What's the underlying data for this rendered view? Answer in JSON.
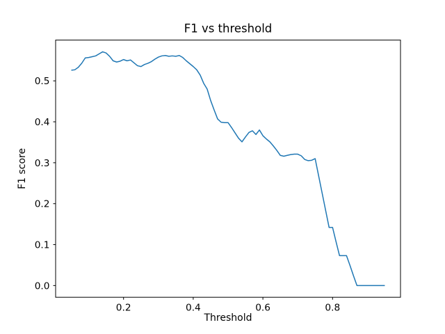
{
  "figure": {
    "background_color": "#ffffff",
    "text_color": "#000000"
  },
  "chart_data": {
    "type": "line",
    "title": "F1 vs threshold",
    "xlabel": "Threshold",
    "ylabel": "F1 score",
    "grid": false,
    "legend": null,
    "line_color": "#1f77b4",
    "xlim": [
      0.005,
      0.995
    ],
    "ylim": [
      -0.0286,
      0.5996
    ],
    "x_ticks": [
      0.2,
      0.4,
      0.6,
      0.8
    ],
    "y_ticks": [
      0.0,
      0.1,
      0.2,
      0.3,
      0.4,
      0.5
    ],
    "x": [
      0.05,
      0.06,
      0.07,
      0.08,
      0.09,
      0.1,
      0.11,
      0.12,
      0.13,
      0.14,
      0.15,
      0.16,
      0.17,
      0.18,
      0.19,
      0.2,
      0.21,
      0.22,
      0.23,
      0.24,
      0.25,
      0.26,
      0.27,
      0.28,
      0.29,
      0.3,
      0.31,
      0.32,
      0.33,
      0.34,
      0.35,
      0.36,
      0.37,
      0.38,
      0.39,
      0.4,
      0.41,
      0.42,
      0.43,
      0.44,
      0.45,
      0.46,
      0.47,
      0.48,
      0.49,
      0.5,
      0.51,
      0.52,
      0.53,
      0.54,
      0.55,
      0.56,
      0.57,
      0.58,
      0.59,
      0.6,
      0.61,
      0.62,
      0.63,
      0.64,
      0.65,
      0.66,
      0.67,
      0.68,
      0.69,
      0.7,
      0.71,
      0.72,
      0.73,
      0.74,
      0.75,
      0.76,
      0.77,
      0.78,
      0.79,
      0.8,
      0.81,
      0.82,
      0.83,
      0.84,
      0.85,
      0.86,
      0.87,
      0.88,
      0.89,
      0.9,
      0.91,
      0.92,
      0.93,
      0.94,
      0.95
    ],
    "y": [
      0.526,
      0.527,
      0.533,
      0.543,
      0.556,
      0.557,
      0.559,
      0.561,
      0.566,
      0.571,
      0.568,
      0.56,
      0.549,
      0.546,
      0.548,
      0.552,
      0.549,
      0.551,
      0.544,
      0.537,
      0.535,
      0.54,
      0.543,
      0.547,
      0.553,
      0.558,
      0.561,
      0.562,
      0.56,
      0.561,
      0.56,
      0.562,
      0.557,
      0.549,
      0.542,
      0.535,
      0.527,
      0.514,
      0.494,
      0.48,
      0.452,
      0.429,
      0.407,
      0.399,
      0.398,
      0.398,
      0.386,
      0.373,
      0.36,
      0.351,
      0.363,
      0.374,
      0.378,
      0.369,
      0.38,
      0.366,
      0.358,
      0.351,
      0.341,
      0.33,
      0.318,
      0.316,
      0.318,
      0.32,
      0.321,
      0.321,
      0.317,
      0.308,
      0.305,
      0.306,
      0.31,
      0.268,
      0.226,
      0.184,
      0.142,
      0.142,
      0.107,
      0.073,
      0.073,
      0.073,
      0.049,
      0.024,
      0.0,
      0.0,
      0.0,
      0.0,
      0.0,
      0.0,
      0.0,
      0.0,
      0.0
    ]
  }
}
